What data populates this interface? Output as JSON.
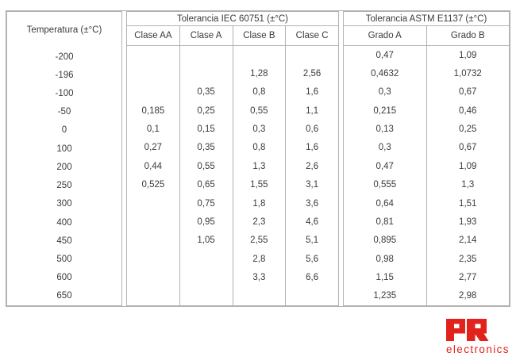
{
  "colors": {
    "border": "#b2b2b2",
    "text": "#3a3a3a",
    "logo_red": "#e2231c"
  },
  "table": {
    "row_header_label": "Temperatura (±°C)",
    "groups": [
      {
        "label": "Tolerancia IEC 60751 (±°C)",
        "columns": [
          "Clase AA",
          "Clase A",
          "Clase B",
          "Clase C"
        ]
      },
      {
        "label": "Tolerancia ASTM E1137 (±°C)",
        "columns": [
          "Grado A",
          "Grado B"
        ]
      }
    ],
    "rows": [
      {
        "temp": "-200",
        "values": [
          "",
          "",
          "",
          "",
          "0,47",
          "1,09"
        ]
      },
      {
        "temp": "-196",
        "values": [
          "",
          "",
          "1,28",
          "2,56",
          "0,4632",
          "1,0732"
        ]
      },
      {
        "temp": "-100",
        "values": [
          "",
          "0,35",
          "0,8",
          "1,6",
          "0,3",
          "0,67"
        ]
      },
      {
        "temp": "-50",
        "values": [
          "0,185",
          "0,25",
          "0,55",
          "1,1",
          "0,215",
          "0,46"
        ]
      },
      {
        "temp": "0",
        "values": [
          "0,1",
          "0,15",
          "0,3",
          "0,6",
          "0,13",
          "0,25"
        ]
      },
      {
        "temp": "100",
        "values": [
          "0,27",
          "0,35",
          "0,8",
          "1,6",
          "0,3",
          "0,67"
        ]
      },
      {
        "temp": "200",
        "values": [
          "0,44",
          "0,55",
          "1,3",
          "2,6",
          "0,47",
          "1,09"
        ]
      },
      {
        "temp": "250",
        "values": [
          "0,525",
          "0,65",
          "1,55",
          "3,1",
          "0,555",
          "1,3"
        ]
      },
      {
        "temp": "300",
        "values": [
          "",
          "0,75",
          "1,8",
          "3,6",
          "0,64",
          "1,51"
        ]
      },
      {
        "temp": "400",
        "values": [
          "",
          "0,95",
          "2,3",
          "4,6",
          "0,81",
          "1,93"
        ]
      },
      {
        "temp": "450",
        "values": [
          "",
          "1,05",
          "2,55",
          "5,1",
          "0,895",
          "2,14"
        ]
      },
      {
        "temp": "500",
        "values": [
          "",
          "",
          "2,8",
          "5,6",
          "0,98",
          "2,35"
        ]
      },
      {
        "temp": "600",
        "values": [
          "",
          "",
          "3,3",
          "6,6",
          "1,15",
          "2,77"
        ]
      },
      {
        "temp": "650",
        "values": [
          "",
          "",
          "",
          "",
          "1,235",
          "2,98"
        ]
      }
    ]
  },
  "logo": {
    "text": "PR",
    "subtext": "electronics"
  }
}
